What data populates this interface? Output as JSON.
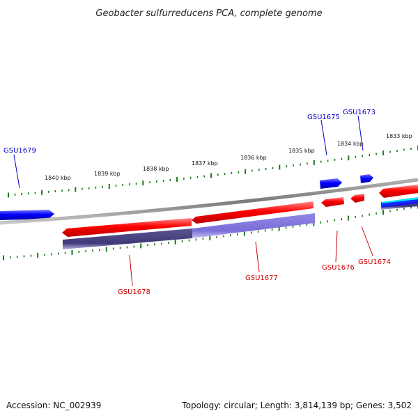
{
  "title": "Geobacter sulfurreducens PCA, complete genome",
  "footer": {
    "accession": "Accession: NC_002939",
    "summary": "Topology: circular; Length: 3,814,139 bp; Genes: 3,502"
  },
  "colors": {
    "backbone": "#808080",
    "tick": "#1a7a1a",
    "forward_gene": "#ff0000",
    "reverse_gene": "#0000ff",
    "forward_label": "#cc0000",
    "reverse_label": "#0000cc",
    "cds_dark": "#3e3a78",
    "cds_light": "#7b6fd8",
    "cyan_feature": "#00e5ee"
  },
  "scale_labels": [
    "1840 kbp",
    "1839 kbp",
    "1838 kbp",
    "1837 kbp",
    "1836 kbp",
    "1835 kbp",
    "1834 kbp",
    "1833 kbp"
  ],
  "genes": [
    {
      "id": "GSU1679",
      "strand": "reverse"
    },
    {
      "id": "GSU1678",
      "strand": "forward"
    },
    {
      "id": "GSU1677",
      "strand": "forward"
    },
    {
      "id": "GSU1676",
      "strand": "forward"
    },
    {
      "id": "GSU1675",
      "strand": "reverse"
    },
    {
      "id": "GSU1674",
      "strand": "forward"
    },
    {
      "id": "GSU1673",
      "strand": "reverse"
    }
  ]
}
